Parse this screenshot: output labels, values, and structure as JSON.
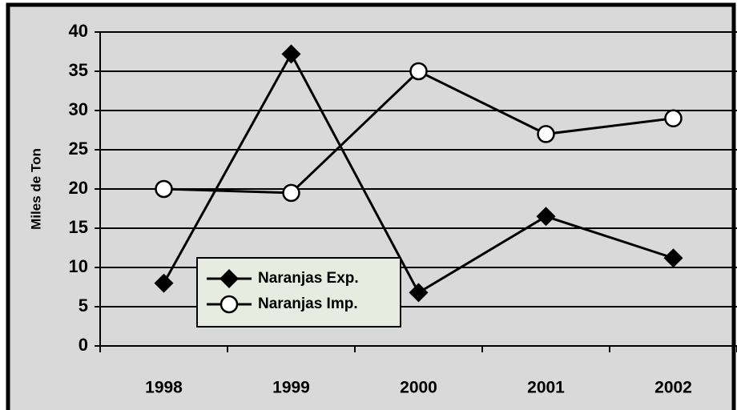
{
  "chart_data": {
    "type": "line",
    "y_label": "Miles de Ton",
    "categories": [
      "1998",
      "1999",
      "2000",
      "2001",
      "2002"
    ],
    "series": [
      {
        "name": "Naranjas Exp.",
        "color": "#000000",
        "marker": "diamond",
        "values": [
          8,
          37.2,
          6.8,
          16.5,
          11.2
        ]
      },
      {
        "name": "Naranjas Imp.",
        "color": "#000000",
        "marker": "circle",
        "values": [
          20,
          19.5,
          35,
          27,
          29
        ]
      }
    ],
    "ylim": [
      0,
      40
    ],
    "yticks": [
      0,
      5,
      10,
      15,
      20,
      25,
      30,
      35,
      40
    ],
    "grid": true,
    "legend": "lower left"
  }
}
